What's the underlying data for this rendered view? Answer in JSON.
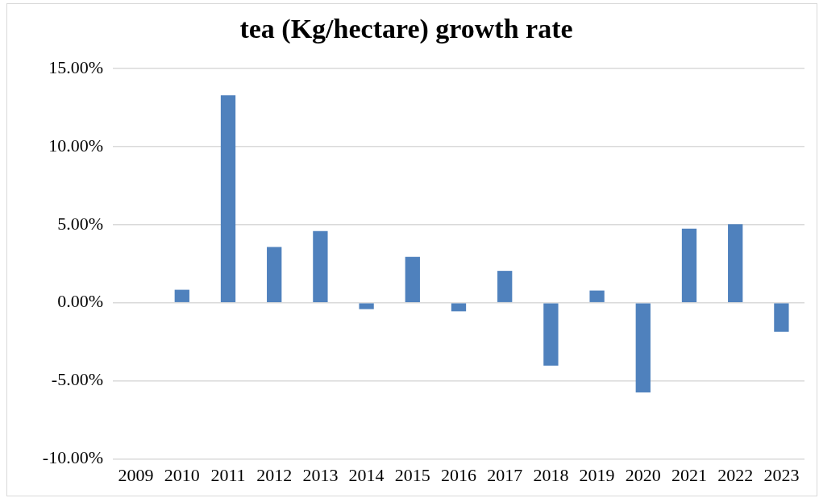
{
  "chart_data": {
    "type": "bar",
    "title": "tea (Kg/hectare) growth rate",
    "categories": [
      "2009",
      "2010",
      "2011",
      "2012",
      "2013",
      "2014",
      "2015",
      "2016",
      "2017",
      "2018",
      "2019",
      "2020",
      "2021",
      "2022",
      "2023"
    ],
    "values": [
      0,
      0.83,
      13.28,
      3.57,
      4.59,
      -0.41,
      2.93,
      -0.55,
      2.04,
      -4.03,
      0.78,
      -5.74,
      4.74,
      5.02,
      -1.86
    ],
    "color": "#4f81bd",
    "ylim": [
      -10,
      15
    ],
    "yticks": [
      {
        "value": -10,
        "label": "-10.00%"
      },
      {
        "value": -5,
        "label": "-5.00%"
      },
      {
        "value": 0,
        "label": "0.00%"
      },
      {
        "value": 5,
        "label": "5.00%"
      },
      {
        "value": 10,
        "label": "10.00%"
      },
      {
        "value": 15,
        "label": "15.00%"
      }
    ],
    "grid": "y"
  }
}
